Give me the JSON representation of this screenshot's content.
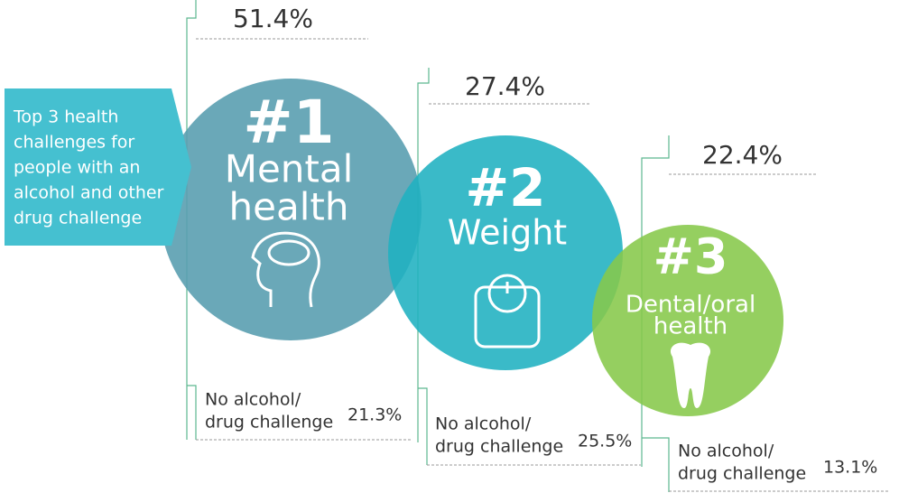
{
  "intro": [
    "Top 3 health",
    "challenges for",
    "people with an",
    "alcohol and other",
    "drug challenge"
  ],
  "items": [
    {
      "rank": "#1",
      "name": [
        "Mental",
        "health"
      ],
      "percent": "51.4%",
      "comparison": [
        "No alcohol/",
        "drug challenge"
      ],
      "comparison_percent": "21.3%"
    },
    {
      "rank": "#2",
      "name": [
        "Weight"
      ],
      "percent": "27.4%",
      "comparison": [
        "No alcohol/",
        "drug challenge"
      ],
      "comparison_percent": "25.5%"
    },
    {
      "rank": "#3",
      "name": [
        "Dental/oral",
        "health"
      ],
      "percent": "22.4%",
      "comparison": [
        "No alcohol/",
        "drug challenge"
      ],
      "comparison_percent": "13.1%"
    }
  ]
}
